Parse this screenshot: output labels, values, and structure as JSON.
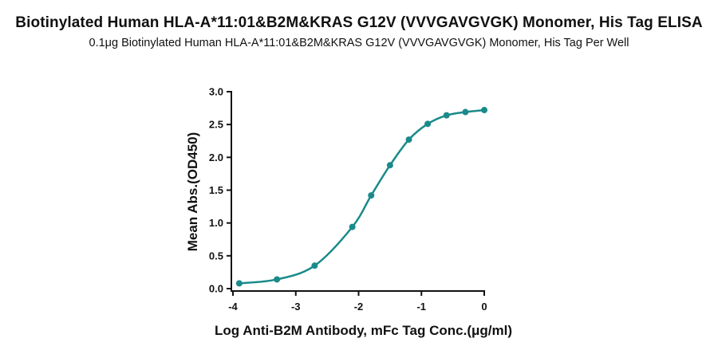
{
  "title": "Biotinylated Human HLA-A*11:01&B2M&KRAS G12V (VVVGAVGVGK) Monomer, His Tag ELISA",
  "subtitle": "0.1μg Biotinylated Human HLA-A*11:01&B2M&KRAS G12V (VVVGAVGVGK) Monomer, His Tag Per Well",
  "colors": {
    "series": "#1a8a8a",
    "axis": "#111111"
  },
  "chart_data": {
    "type": "scatter",
    "xlabel": "Log Anti-B2M Antibody, mFc Tag Conc.(μg/ml)",
    "ylabel": "Mean Abs.(OD450)",
    "xlim": [
      -4,
      0
    ],
    "ylim": [
      0,
      3
    ],
    "xticks": [
      -4,
      -3,
      -2,
      -1,
      0
    ],
    "yticks": [
      0.0,
      0.5,
      1.0,
      1.5,
      2.0,
      2.5,
      3.0
    ],
    "xtick_labels": [
      "-4",
      "-3",
      "-2",
      "-1",
      "0"
    ],
    "ytick_labels": [
      "0.0",
      "0.5",
      "1.0",
      "1.5",
      "2.0",
      "2.5",
      "3.0"
    ],
    "grid": false,
    "fit": "4PL sigmoidal curve",
    "series": [
      {
        "x": [
          -3.9,
          -3.3,
          -2.7,
          -2.1,
          -1.8,
          -1.5,
          -1.2,
          -0.9,
          -0.6,
          -0.3,
          0.0
        ],
        "y": [
          0.08,
          0.14,
          0.35,
          0.94,
          1.42,
          1.88,
          2.27,
          2.51,
          2.64,
          2.69,
          2.72
        ]
      }
    ]
  }
}
